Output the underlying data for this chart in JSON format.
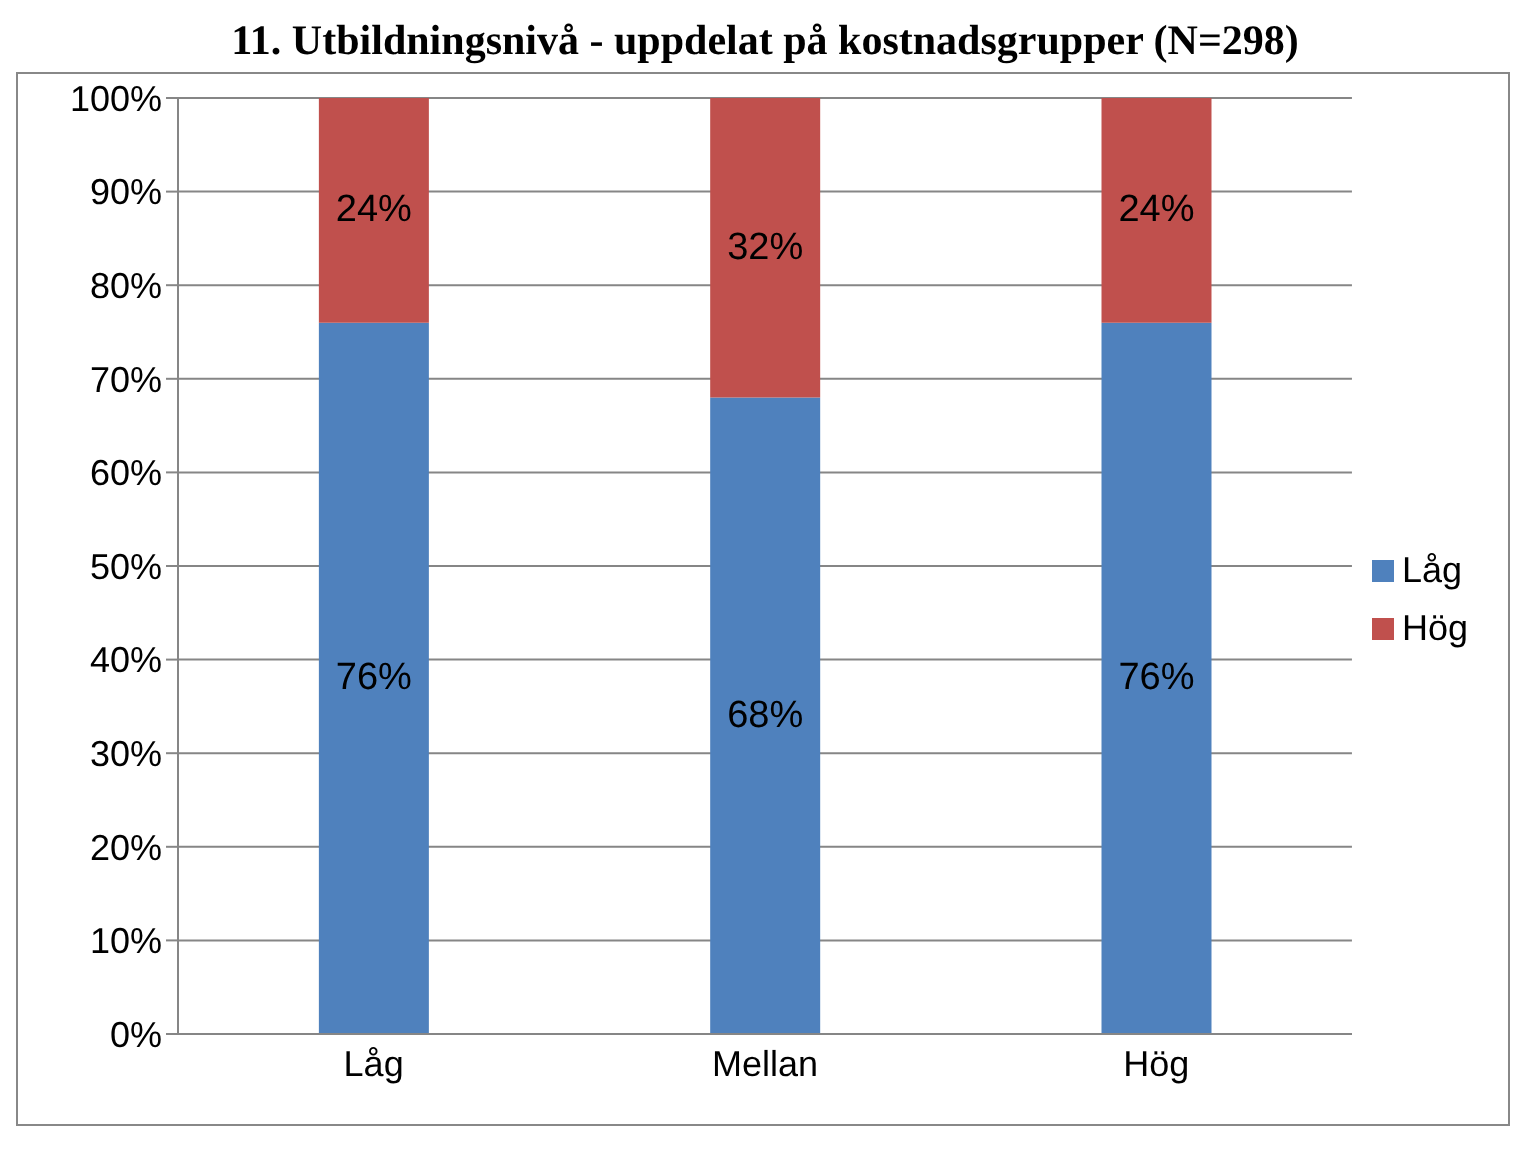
{
  "chart_data": {
    "type": "bar",
    "title": "11. Utbildningsnivå - uppdelat på kostnadsgrupper (N=298)",
    "categories": [
      "Låg",
      "Mellan",
      "Hög"
    ],
    "stacked": true,
    "series": [
      {
        "name": "Låg",
        "color": "#4f81bd",
        "values": [
          76,
          68,
          76
        ],
        "value_labels": [
          "76%",
          "68%",
          "76%"
        ]
      },
      {
        "name": "Hög",
        "color": "#c0504d",
        "values": [
          24,
          32,
          24
        ],
        "value_labels": [
          "24%",
          "32%",
          "24%"
        ]
      }
    ],
    "ylim": [
      0,
      100
    ],
    "yticks": [
      {
        "value": 0,
        "label": "0%"
      },
      {
        "value": 10,
        "label": "10%"
      },
      {
        "value": 20,
        "label": "20%"
      },
      {
        "value": 30,
        "label": "30%"
      },
      {
        "value": 40,
        "label": "40%"
      },
      {
        "value": 50,
        "label": "50%"
      },
      {
        "value": 60,
        "label": "60%"
      },
      {
        "value": 70,
        "label": "70%"
      },
      {
        "value": 80,
        "label": "80%"
      },
      {
        "value": 90,
        "label": "90%"
      },
      {
        "value": 100,
        "label": "100%"
      }
    ],
    "grid": "y",
    "legend": "right"
  }
}
